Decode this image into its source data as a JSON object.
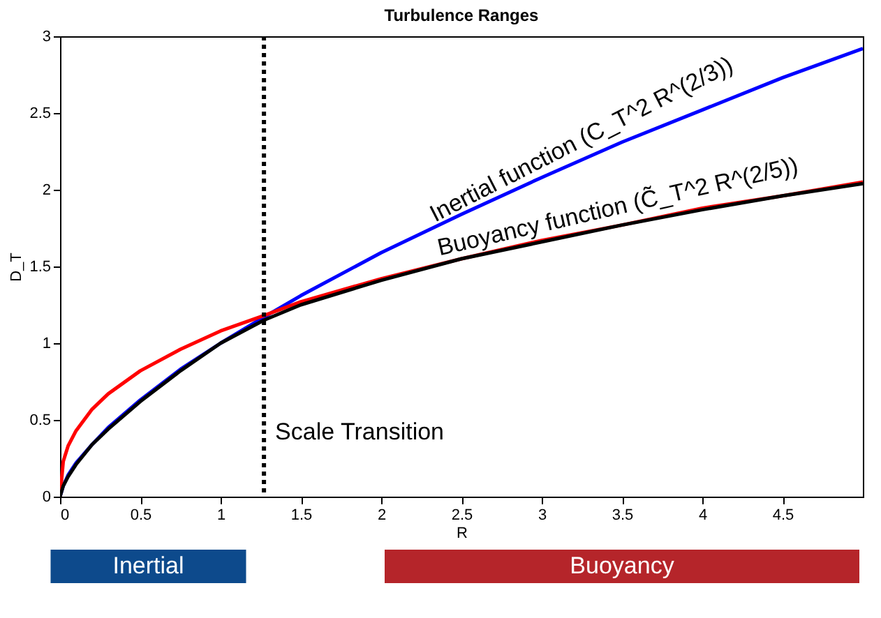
{
  "chart_data": {
    "type": "line",
    "title": "Turbulence Ranges",
    "xlabel": "R",
    "ylabel": "D_T",
    "x": [
      0,
      0.02,
      0.05,
      0.1,
      0.2,
      0.3,
      0.5,
      0.75,
      1,
      1.27,
      1.5,
      2,
      2.5,
      3,
      3.5,
      4,
      4.5,
      5
    ],
    "series": [
      {
        "color": "#0000ff",
        "values": [
          0,
          0.07,
          0.14,
          0.22,
          0.34,
          0.45,
          0.63,
          0.83,
          1,
          1.17,
          1.31,
          1.59,
          1.84,
          2.08,
          2.31,
          2.52,
          2.73,
          2.92
        ]
      },
      {
        "color": "#ff0000",
        "values": [
          0,
          0.23,
          0.33,
          0.43,
          0.57,
          0.67,
          0.82,
          0.96,
          1.08,
          1.18,
          1.27,
          1.42,
          1.55,
          1.67,
          1.77,
          1.88,
          1.96,
          2.05
        ]
      },
      {
        "color": "#000000",
        "values": [
          0,
          0.07,
          0.13,
          0.21,
          0.34,
          0.44,
          0.62,
          0.82,
          1.0,
          1.15,
          1.25,
          1.41,
          1.55,
          1.66,
          1.77,
          1.87,
          1.96,
          2.04
        ]
      }
    ],
    "xlim": [
      0,
      5
    ],
    "xticks": [
      0,
      0.5,
      1,
      1.5,
      2,
      2.5,
      3,
      3.5,
      4,
      4.5
    ],
    "ylim": [
      0,
      3
    ],
    "yticks": [
      0,
      0.5,
      1,
      1.5,
      2,
      2.5,
      3
    ],
    "grid": false,
    "marker": "none",
    "line_style": "solid",
    "ref_lines": [
      {
        "axis": "x",
        "value": 1.27,
        "label": "Scale Transition",
        "color": "#000000",
        "line_style": "dotted"
      }
    ],
    "annotations": [
      {
        "text": "Inertial function (C_T^2 R^(2/3))",
        "x": 3.3,
        "y": 2.22
      },
      {
        "text": "Buoyancy function (C̃_T^2 R^(2/5))",
        "x": 3.5,
        "y": 1.77
      },
      "Inertial",
      "Buoyancy"
    ]
  }
}
